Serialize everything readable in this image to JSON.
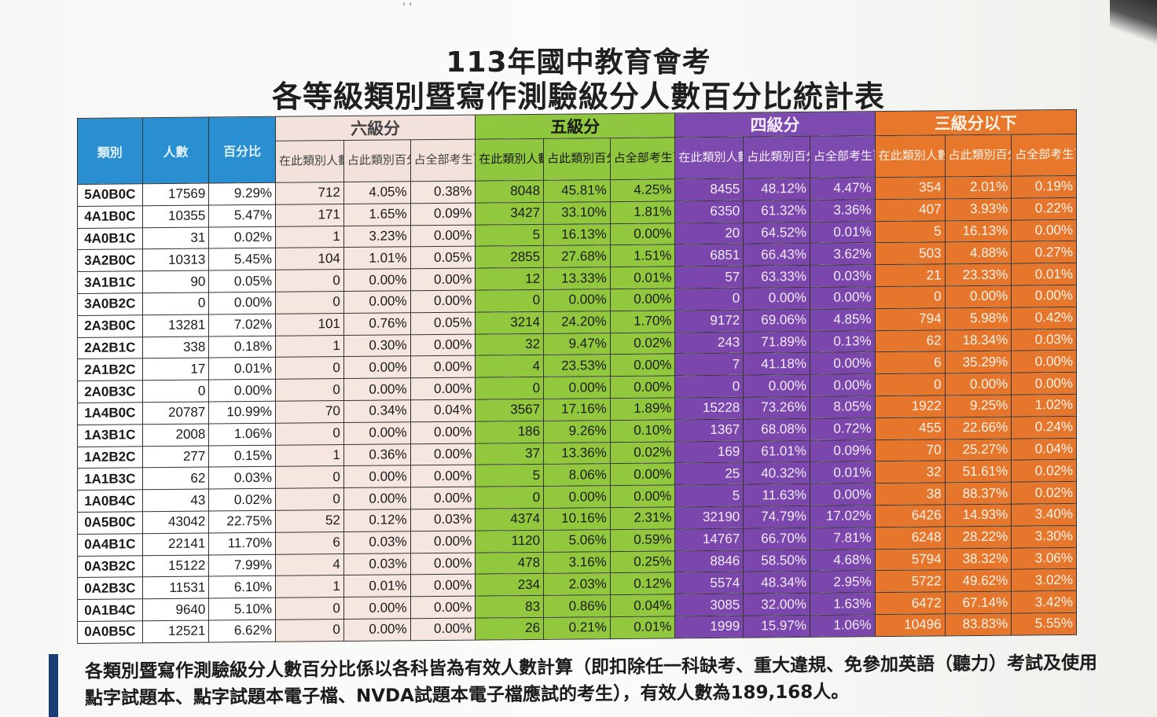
{
  "title_line1": "113年國中教育會考",
  "title_line2": "各等級類別暨寫作測驗級分人數百分比統計表",
  "headers": {
    "category": "類別",
    "count": "人數",
    "percent": "百分比",
    "bands": [
      "六級分",
      "五級分",
      "四級分",
      "三級分以下"
    ],
    "sub_count": "在此類別人數",
    "sub_class_pct": "占此類別百分比",
    "sub_total_pct": "占全部考生百分比"
  },
  "rows": [
    [
      "5A0B0C",
      "17569",
      "9.29%",
      "712",
      "4.05%",
      "0.38%",
      "8048",
      "45.81%",
      "4.25%",
      "8455",
      "48.12%",
      "4.47%",
      "354",
      "2.01%",
      "0.19%"
    ],
    [
      "4A1B0C",
      "10355",
      "5.47%",
      "171",
      "1.65%",
      "0.09%",
      "3427",
      "33.10%",
      "1.81%",
      "6350",
      "61.32%",
      "3.36%",
      "407",
      "3.93%",
      "0.22%"
    ],
    [
      "4A0B1C",
      "31",
      "0.02%",
      "1",
      "3.23%",
      "0.00%",
      "5",
      "16.13%",
      "0.00%",
      "20",
      "64.52%",
      "0.01%",
      "5",
      "16.13%",
      "0.00%"
    ],
    [
      "3A2B0C",
      "10313",
      "5.45%",
      "104",
      "1.01%",
      "0.05%",
      "2855",
      "27.68%",
      "1.51%",
      "6851",
      "66.43%",
      "3.62%",
      "503",
      "4.88%",
      "0.27%"
    ],
    [
      "3A1B1C",
      "90",
      "0.05%",
      "0",
      "0.00%",
      "0.00%",
      "12",
      "13.33%",
      "0.01%",
      "57",
      "63.33%",
      "0.03%",
      "21",
      "23.33%",
      "0.01%"
    ],
    [
      "3A0B2C",
      "0",
      "0.00%",
      "0",
      "0.00%",
      "0.00%",
      "0",
      "0.00%",
      "0.00%",
      "0",
      "0.00%",
      "0.00%",
      "0",
      "0.00%",
      "0.00%"
    ],
    [
      "2A3B0C",
      "13281",
      "7.02%",
      "101",
      "0.76%",
      "0.05%",
      "3214",
      "24.20%",
      "1.70%",
      "9172",
      "69.06%",
      "4.85%",
      "794",
      "5.98%",
      "0.42%"
    ],
    [
      "2A2B1C",
      "338",
      "0.18%",
      "1",
      "0.30%",
      "0.00%",
      "32",
      "9.47%",
      "0.02%",
      "243",
      "71.89%",
      "0.13%",
      "62",
      "18.34%",
      "0.03%"
    ],
    [
      "2A1B2C",
      "17",
      "0.01%",
      "0",
      "0.00%",
      "0.00%",
      "4",
      "23.53%",
      "0.00%",
      "7",
      "41.18%",
      "0.00%",
      "6",
      "35.29%",
      "0.00%"
    ],
    [
      "2A0B3C",
      "0",
      "0.00%",
      "0",
      "0.00%",
      "0.00%",
      "0",
      "0.00%",
      "0.00%",
      "0",
      "0.00%",
      "0.00%",
      "0",
      "0.00%",
      "0.00%"
    ],
    [
      "1A4B0C",
      "20787",
      "10.99%",
      "70",
      "0.34%",
      "0.04%",
      "3567",
      "17.16%",
      "1.89%",
      "15228",
      "73.26%",
      "8.05%",
      "1922",
      "9.25%",
      "1.02%"
    ],
    [
      "1A3B1C",
      "2008",
      "1.06%",
      "0",
      "0.00%",
      "0.00%",
      "186",
      "9.26%",
      "0.10%",
      "1367",
      "68.08%",
      "0.72%",
      "455",
      "22.66%",
      "0.24%"
    ],
    [
      "1A2B2C",
      "277",
      "0.15%",
      "1",
      "0.36%",
      "0.00%",
      "37",
      "13.36%",
      "0.02%",
      "169",
      "61.01%",
      "0.09%",
      "70",
      "25.27%",
      "0.04%"
    ],
    [
      "1A1B3C",
      "62",
      "0.03%",
      "0",
      "0.00%",
      "0.00%",
      "5",
      "8.06%",
      "0.00%",
      "25",
      "40.32%",
      "0.01%",
      "32",
      "51.61%",
      "0.02%"
    ],
    [
      "1A0B4C",
      "43",
      "0.02%",
      "0",
      "0.00%",
      "0.00%",
      "0",
      "0.00%",
      "0.00%",
      "5",
      "11.63%",
      "0.00%",
      "38",
      "88.37%",
      "0.02%"
    ],
    [
      "0A5B0C",
      "43042",
      "22.75%",
      "52",
      "0.12%",
      "0.03%",
      "4374",
      "10.16%",
      "2.31%",
      "32190",
      "74.79%",
      "17.02%",
      "6426",
      "14.93%",
      "3.40%"
    ],
    [
      "0A4B1C",
      "22141",
      "11.70%",
      "6",
      "0.03%",
      "0.00%",
      "1120",
      "5.06%",
      "0.59%",
      "14767",
      "66.70%",
      "7.81%",
      "6248",
      "28.22%",
      "3.30%"
    ],
    [
      "0A3B2C",
      "15122",
      "7.99%",
      "4",
      "0.03%",
      "0.00%",
      "478",
      "3.16%",
      "0.25%",
      "8846",
      "58.50%",
      "4.68%",
      "5794",
      "38.32%",
      "3.06%"
    ],
    [
      "0A2B3C",
      "11531",
      "6.10%",
      "1",
      "0.01%",
      "0.00%",
      "234",
      "2.03%",
      "0.12%",
      "5574",
      "48.34%",
      "2.95%",
      "5722",
      "49.62%",
      "3.02%"
    ],
    [
      "0A1B4C",
      "9640",
      "5.10%",
      "0",
      "0.00%",
      "0.00%",
      "83",
      "0.86%",
      "0.04%",
      "3085",
      "32.00%",
      "1.63%",
      "6472",
      "67.14%",
      "3.42%"
    ],
    [
      "0A0B5C",
      "12521",
      "6.62%",
      "0",
      "0.00%",
      "0.00%",
      "26",
      "0.21%",
      "0.01%",
      "1999",
      "15.97%",
      "1.06%",
      "10496",
      "83.83%",
      "5.55%"
    ]
  ],
  "note": "各類別暨寫作測驗級分人數百分比係以各科皆為有效人數計算（即扣除任一科缺考、重大違規、免參加英語（聽力）考試及使用點字試題本、點字試題本電子檔、NVDA試題本電子檔應試的考生），有效人數為189,168人。",
  "colors": {
    "header_blue": "#2a8fd0",
    "six": "#f6e6e0",
    "five": "#92c83d",
    "four": "#7b47ac",
    "three": "#e6762b"
  }
}
